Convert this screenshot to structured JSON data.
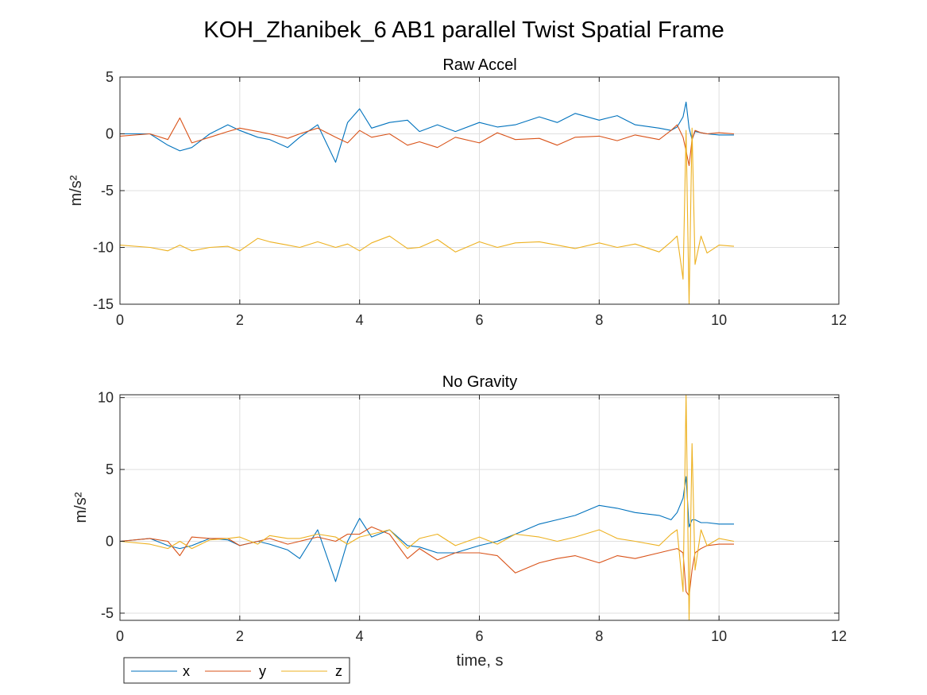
{
  "figure": {
    "title": "KOH_Zhanibek_6 AB1 parallel Twist Spatial Frame"
  },
  "colors": {
    "x": "#0072BD",
    "y": "#D95319",
    "z": "#EDB120"
  },
  "legend": {
    "placement": "bottom-left, outside",
    "entries": [
      "x",
      "y",
      "z"
    ]
  },
  "chart_data": [
    {
      "type": "line",
      "title": "Raw Accel",
      "xlabel": "",
      "ylabel": "m/s²",
      "xlim": [
        0,
        12
      ],
      "ylim": [
        -15,
        5
      ],
      "xticks": [
        0,
        2,
        4,
        6,
        8,
        10,
        12
      ],
      "yticks": [
        -15,
        -10,
        -5,
        0,
        5
      ],
      "grid": true,
      "x": [
        0,
        0.5,
        0.8,
        1.0,
        1.2,
        1.5,
        1.8,
        2.0,
        2.3,
        2.5,
        2.8,
        3.0,
        3.3,
        3.6,
        3.8,
        4.0,
        4.2,
        4.5,
        4.8,
        5.0,
        5.3,
        5.6,
        6.0,
        6.3,
        6.6,
        7.0,
        7.3,
        7.6,
        8.0,
        8.3,
        8.6,
        9.0,
        9.2,
        9.3,
        9.4,
        9.45,
        9.5,
        9.55,
        9.6,
        9.7,
        9.8,
        10.0,
        10.25
      ],
      "series": [
        {
          "name": "x",
          "values": [
            0,
            0,
            -1.0,
            -1.5,
            -1.2,
            0,
            0.8,
            0.3,
            -0.3,
            -0.5,
            -1.2,
            -0.3,
            0.8,
            -2.5,
            1.0,
            2.2,
            0.5,
            1.0,
            1.2,
            0.2,
            0.8,
            0.2,
            1.0,
            0.6,
            0.8,
            1.5,
            1.0,
            1.8,
            1.2,
            1.6,
            0.8,
            0.5,
            0.3,
            0.6,
            1.5,
            2.8,
            0.5,
            -0.5,
            0.2,
            0.1,
            0,
            -0.1,
            -0.1
          ]
        },
        {
          "name": "y",
          "values": [
            -0.2,
            0,
            -0.5,
            1.4,
            -0.8,
            -0.3,
            0.2,
            0.5,
            0.2,
            0,
            -0.4,
            0,
            0.5,
            -0.3,
            -0.8,
            0.3,
            -0.3,
            0,
            -1.0,
            -0.7,
            -1.2,
            -0.3,
            -0.8,
            0.1,
            -0.5,
            -0.4,
            -1.0,
            -0.3,
            -0.2,
            -0.6,
            -0.1,
            -0.5,
            0.3,
            0.8,
            -0.3,
            -1.5,
            -2.8,
            -0.5,
            0.3,
            0.1,
            0,
            0.1,
            0
          ]
        },
        {
          "name": "z",
          "values": [
            -9.8,
            -10.0,
            -10.3,
            -9.8,
            -10.3,
            -10.0,
            -9.9,
            -10.3,
            -9.2,
            -9.5,
            -9.8,
            -10.0,
            -9.5,
            -10.0,
            -9.7,
            -10.3,
            -9.6,
            -9.0,
            -10.1,
            -10.0,
            -9.3,
            -10.4,
            -9.5,
            -10.0,
            -9.6,
            -9.5,
            -9.8,
            -10.1,
            -9.6,
            -10.0,
            -9.7,
            -10.4,
            -9.5,
            -9.0,
            -12.8,
            0.3,
            -15.0,
            0.5,
            -11.5,
            -9.0,
            -10.5,
            -9.8,
            -9.9
          ]
        }
      ]
    },
    {
      "type": "line",
      "title": "No Gravity",
      "xlabel": "time, s",
      "ylabel": "m/s²",
      "xlim": [
        0,
        12
      ],
      "ylim": [
        -5.5,
        10.2
      ],
      "xticks": [
        0,
        2,
        4,
        6,
        8,
        10,
        12
      ],
      "yticks": [
        -5,
        0,
        5,
        10
      ],
      "grid": true,
      "x": [
        0,
        0.5,
        0.8,
        1.0,
        1.2,
        1.5,
        1.8,
        2.0,
        2.3,
        2.5,
        2.8,
        3.0,
        3.3,
        3.6,
        3.8,
        4.0,
        4.2,
        4.5,
        4.8,
        5.0,
        5.3,
        5.6,
        6.0,
        6.3,
        6.6,
        7.0,
        7.3,
        7.6,
        8.0,
        8.3,
        8.6,
        9.0,
        9.2,
        9.3,
        9.4,
        9.45,
        9.5,
        9.55,
        9.6,
        9.7,
        9.8,
        10.0,
        10.25
      ],
      "series": [
        {
          "name": "x",
          "values": [
            0,
            0.2,
            -0.3,
            -0.5,
            -0.3,
            0.2,
            0.1,
            -0.3,
            0,
            -0.2,
            -0.6,
            -1.2,
            0.8,
            -2.8,
            0,
            1.6,
            0.3,
            0.8,
            -0.3,
            -0.4,
            -0.8,
            -0.8,
            -0.3,
            0,
            0.5,
            1.2,
            1.5,
            1.8,
            2.5,
            2.3,
            2.0,
            1.8,
            1.5,
            2.0,
            3.0,
            4.5,
            1.0,
            1.5,
            1.5,
            1.3,
            1.3,
            1.2,
            1.2
          ]
        },
        {
          "name": "y",
          "values": [
            0,
            0.2,
            0,
            -1.0,
            0.3,
            0.2,
            0.2,
            -0.3,
            0,
            0.2,
            -0.2,
            0,
            0.3,
            0,
            0.5,
            0.5,
            1.0,
            0.5,
            -1.2,
            -0.5,
            -1.3,
            -0.8,
            -0.8,
            -1.0,
            -2.2,
            -1.5,
            -1.2,
            -1.0,
            -1.5,
            -1.0,
            -1.2,
            -0.8,
            -0.6,
            -0.5,
            -0.8,
            -3.5,
            -3.8,
            -2.0,
            -0.8,
            -0.5,
            -0.3,
            -0.2,
            -0.2
          ]
        },
        {
          "name": "z",
          "values": [
            0,
            -0.2,
            -0.5,
            0,
            -0.5,
            0.1,
            0.2,
            0.3,
            -0.2,
            0.4,
            0.2,
            0.2,
            0.5,
            0.3,
            -0.2,
            0.3,
            0.5,
            0.8,
            -0.5,
            0.2,
            0.5,
            -0.3,
            0.3,
            -0.2,
            0.5,
            0.3,
            0,
            0.3,
            0.8,
            0.2,
            0,
            -0.3,
            0.5,
            0.8,
            -3.5,
            10.2,
            -5.5,
            6.8,
            -2.0,
            0.8,
            -0.3,
            0.2,
            0
          ]
        }
      ]
    }
  ]
}
